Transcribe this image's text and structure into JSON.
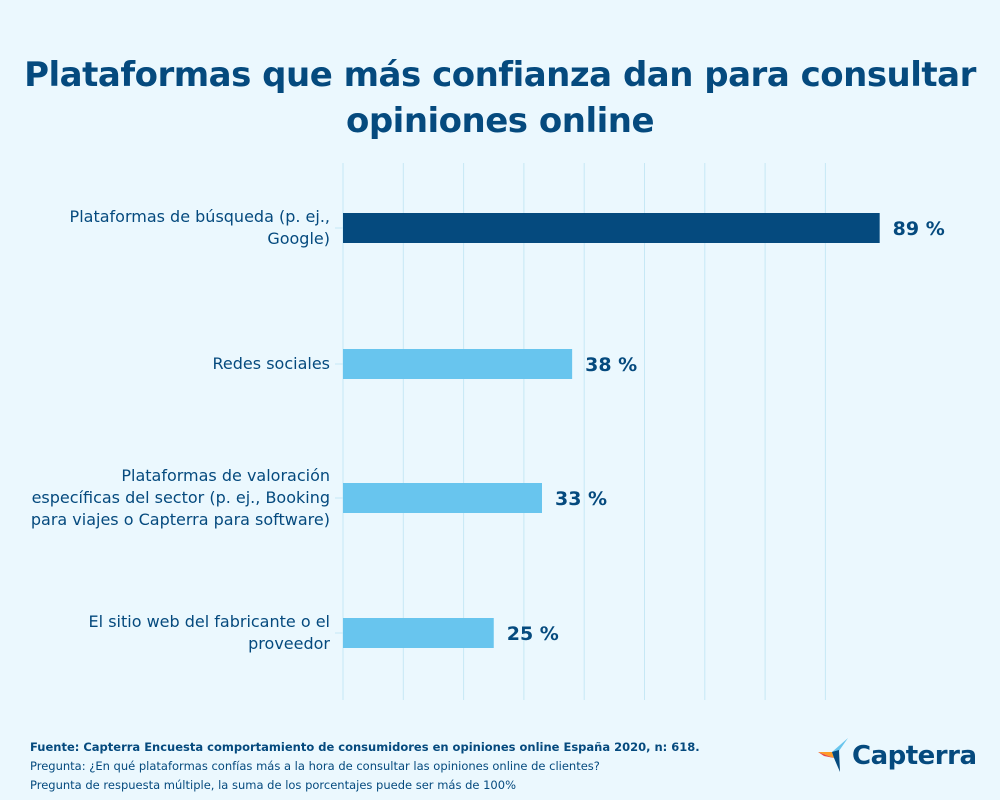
{
  "chart_data": {
    "type": "bar",
    "orientation": "horizontal",
    "title": "Plataformas que más confianza dan para consultar opiniones online",
    "categories": [
      "Plataformas de búsqueda (p. ej., Google)",
      "Redes sociales",
      "Plataformas de valoración específicas del sector (p. ej., Booking para viajes o Capterra para software)",
      "El sitio web del fabricante o el proveedor"
    ],
    "values": [
      89,
      38,
      33,
      25
    ],
    "data_labels": [
      "89 %",
      "38 %",
      "33 %",
      "25 %"
    ],
    "bar_colors": [
      "#054a7e",
      "#68c5ee",
      "#68c5ee",
      "#68c5ee"
    ],
    "xlim": [
      0,
      100
    ],
    "grid": true,
    "gridline_step": 10,
    "xlabel": "",
    "ylabel": ""
  },
  "footer": {
    "source": "Fuente: Capterra Encuesta comportamiento de consumidores en opiniones online España 2020, n: 618.",
    "question": "Pregunta: ¿En qué plataformas confías más a la hora de consultar las opiniones online de clientes?",
    "note": "Pregunta de respuesta múltiple, la suma de los porcentajes puede ser más de 100%"
  },
  "logo": {
    "text": "Capterra"
  },
  "colors": {
    "background": "#ebf8fe",
    "text": "#054a7e",
    "grid": "#c6e8f5"
  }
}
